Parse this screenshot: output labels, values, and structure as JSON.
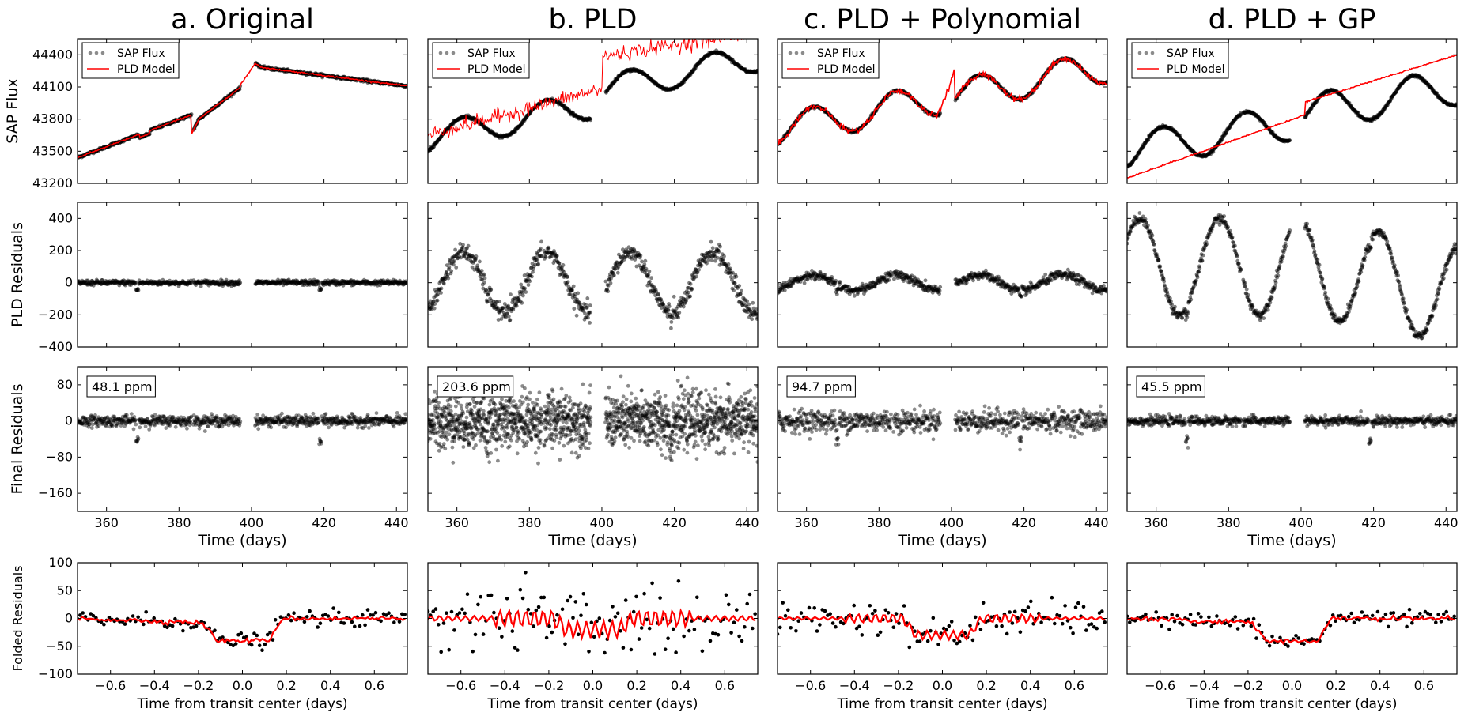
{
  "colors": {
    "data": "#000000",
    "model": "#ff0000",
    "data_faded": "#7a7a7a"
  },
  "columns": [
    {
      "title": "a. Original",
      "ppm": "48.1 ppm",
      "model": "original",
      "resid_amp": 0,
      "final_noise": 6,
      "fold_noise": 7,
      "fold_depth": 40,
      "fold_wiggle": 0
    },
    {
      "title": "b. PLD",
      "ppm": "203.6 ppm",
      "model": "pld",
      "resid_amp": 190,
      "final_noise": 30,
      "fold_noise": 35,
      "fold_depth": 20,
      "fold_wiggle": 15
    },
    {
      "title": "c. PLD + Polynomial",
      "ppm": "94.7 ppm",
      "model": "poly",
      "resid_amp": 80,
      "final_noise": 12,
      "fold_noise": 15,
      "fold_depth": 30,
      "fold_wiggle": 8
    },
    {
      "title": "d. PLD + GP",
      "ppm": "45.5 ppm",
      "model": "gp",
      "resid_amp": 400,
      "final_noise": 5,
      "fold_noise": 7,
      "fold_depth": 40,
      "fold_wiggle": 0
    }
  ],
  "legend": {
    "data_label": "SAP Flux",
    "model_label": "PLD Model"
  },
  "rows": [
    {
      "ylabel": "SAP Flux",
      "ticks": [
        "43200",
        "43500",
        "43800",
        "44100",
        "44400"
      ]
    },
    {
      "ylabel": "PLD Residuals",
      "ticks": [
        "−400",
        "−200",
        "0",
        "200",
        "400"
      ]
    },
    {
      "ylabel": "Final Residuals",
      "ticks": [
        "−160",
        "−80",
        "0",
        "80"
      ],
      "xlabel": "Time (days)"
    },
    {
      "ylabel": "Folded Residuals",
      "ticks": [
        "−100",
        "−50",
        "0",
        "50",
        "100"
      ],
      "xlabel": "Time from transit center (days)"
    }
  ],
  "xticks_time": [
    "360",
    "380",
    "400",
    "420",
    "440"
  ],
  "xticks_fold": [
    "−0.6",
    "−0.4",
    "−0.2",
    "0.0",
    "0.2",
    "0.4",
    "0.6"
  ],
  "chart_data": {
    "type": "scatter",
    "xlim_time": [
      352,
      443
    ],
    "xlim_fold": [
      -0.75,
      0.75
    ],
    "ylims": {
      "sap_flux": [
        43200,
        44550
      ],
      "pld_residuals": [
        -400,
        500
      ],
      "final_residuals": [
        -200,
        120
      ],
      "folded_residuals": [
        -100,
        100
      ]
    },
    "time_segments": [
      [
        352,
        383.5
      ],
      [
        384,
        397
      ],
      [
        401,
        443
      ]
    ],
    "transit_times": [
      368.5,
      419
    ],
    "transit_duration_days": 0.25
  }
}
